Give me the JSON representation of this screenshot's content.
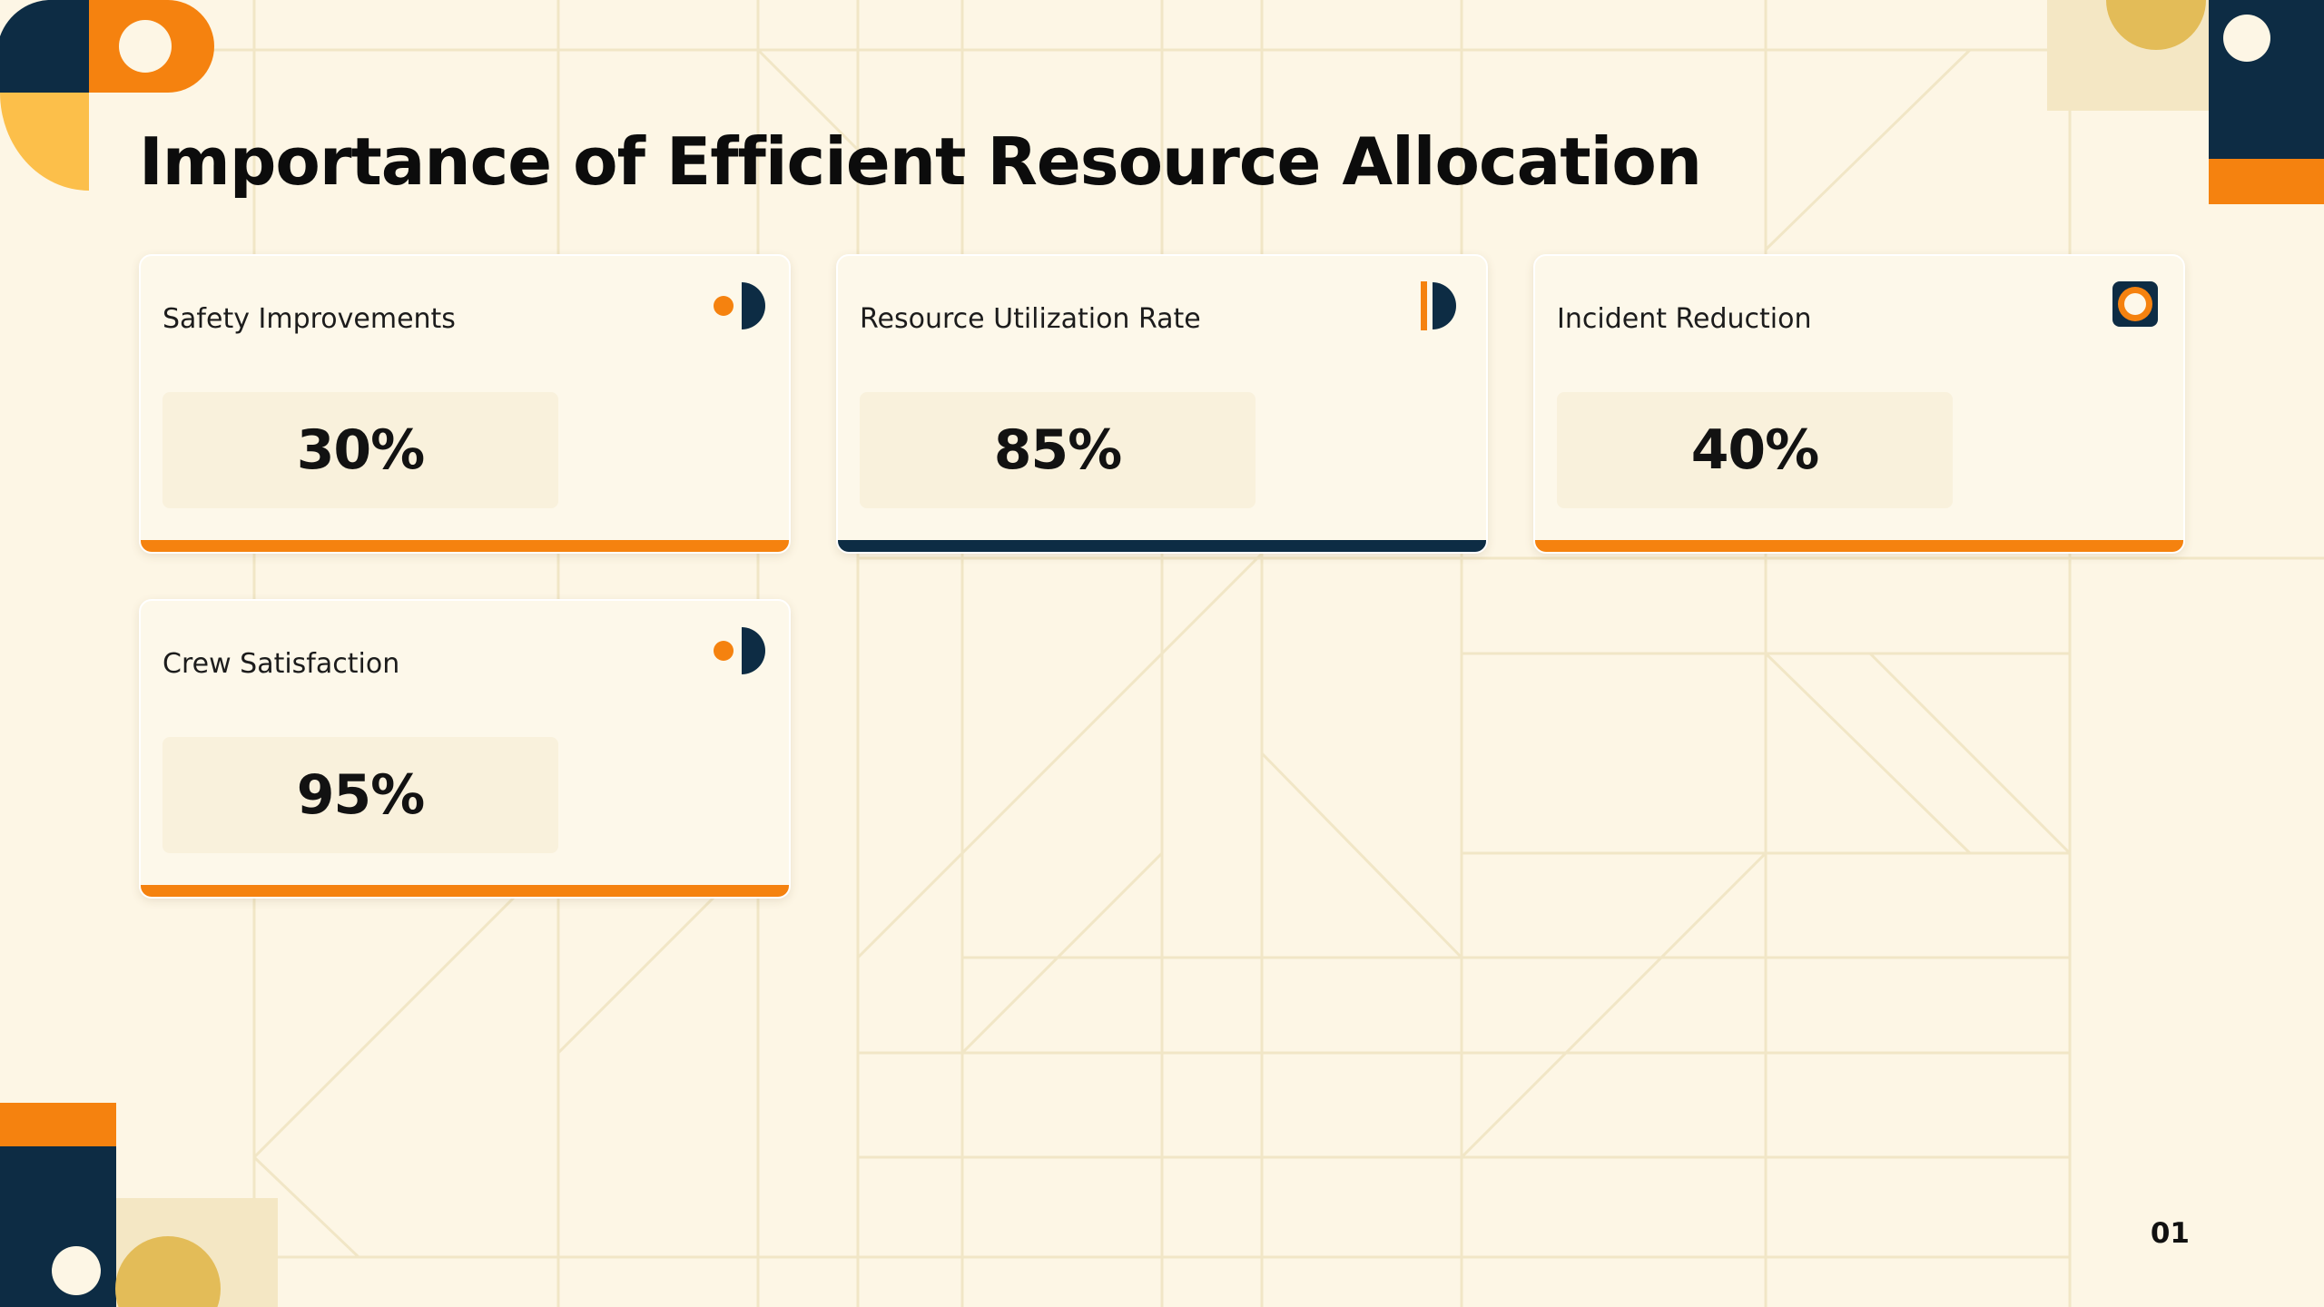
{
  "slide": {
    "title": "Importance of Efficient Resource Allocation",
    "page_number": "01"
  },
  "colors": {
    "background": "#fdf6e5",
    "orange": "#f5820f",
    "navy": "#0d2c44",
    "gold": "#e3bc58",
    "light_gold": "#f4e7c4"
  },
  "cards": [
    {
      "label": "Safety Improvements",
      "value": "30%",
      "icon": "half-circle-dot-icon",
      "bar_color": "#f5820f"
    },
    {
      "label": "Resource Utilization Rate",
      "value": "85%",
      "icon": "bar-half-circle-icon",
      "bar_color": "#0d2c44"
    },
    {
      "label": "Incident Reduction",
      "value": "40%",
      "icon": "ring-square-icon",
      "bar_color": "#f5820f"
    },
    {
      "label": "Crew Satisfaction",
      "value": "95%",
      "icon": "half-circle-dot-icon",
      "bar_color": "#f5820f"
    }
  ]
}
